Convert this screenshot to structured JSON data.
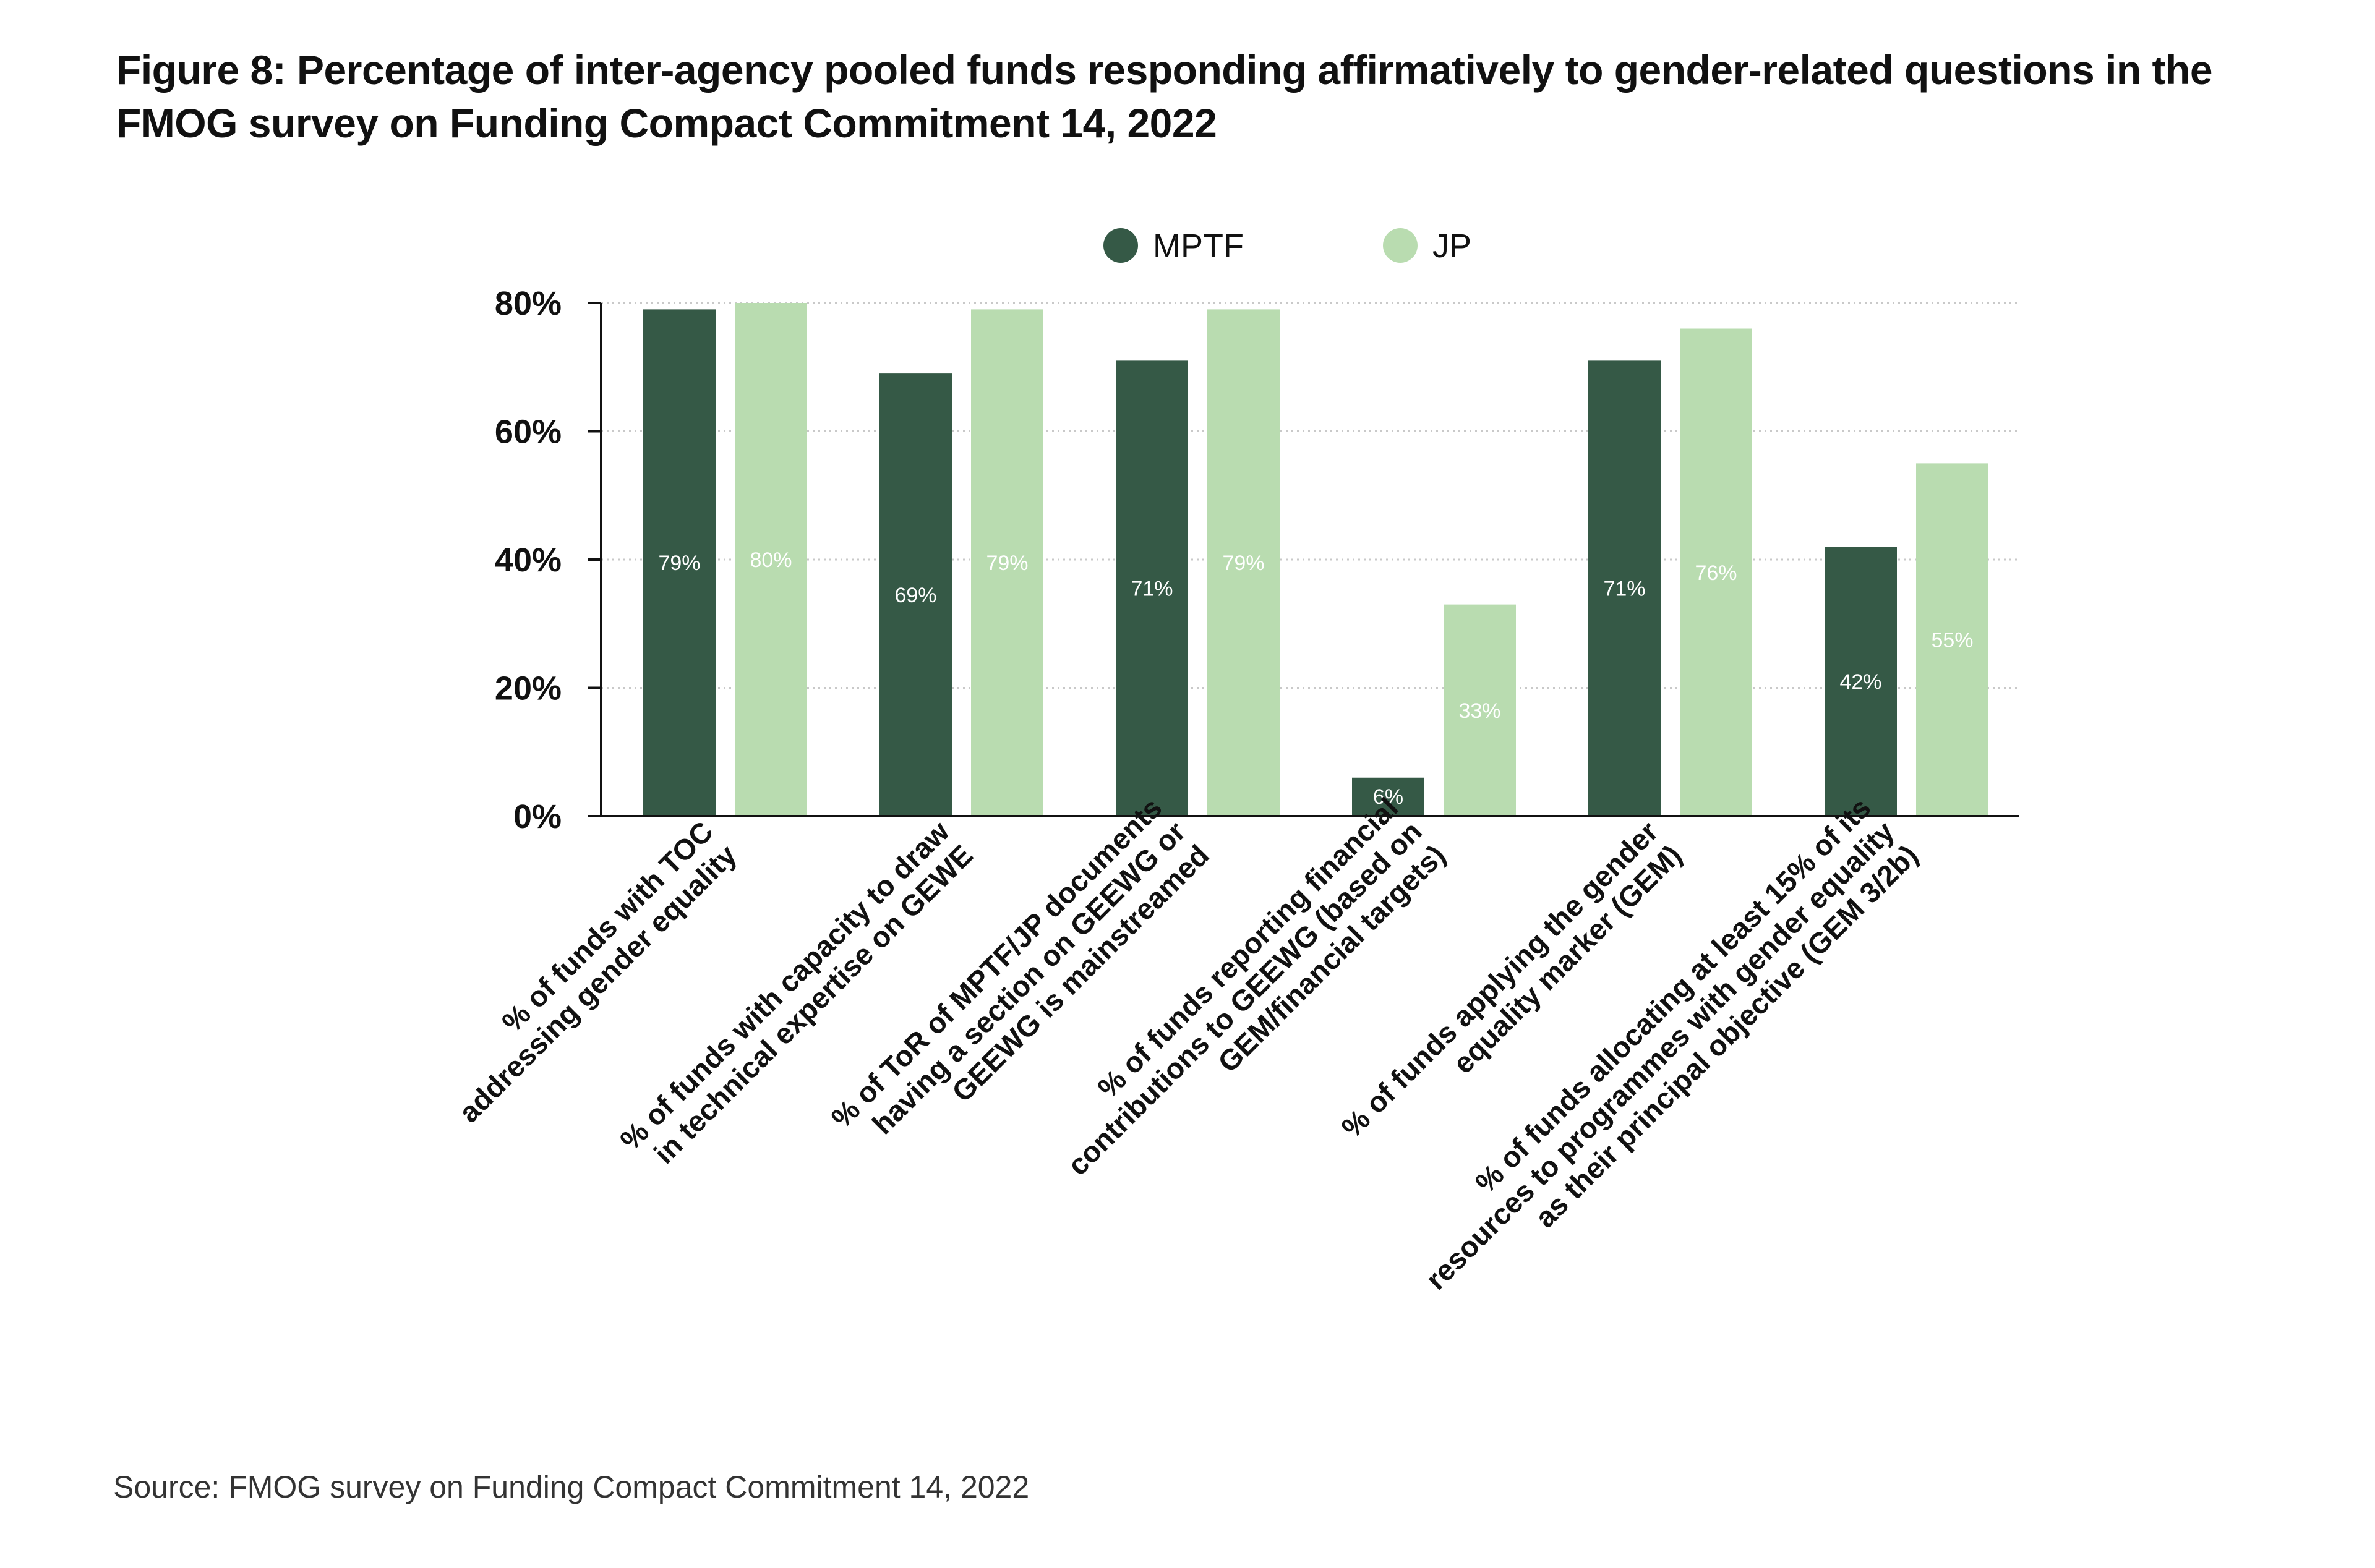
{
  "figure": {
    "title": "Figure 8: Percentage of inter-agency pooled funds responding affirmatively to gender-related questions in the FMOG survey on Funding Compact Commitment 14, 2022",
    "source": "Source: FMOG survey on Funding Compact Commitment 14, 2022"
  },
  "chart_data": {
    "type": "bar",
    "title": "Figure 8: Percentage of inter-agency pooled funds responding affirmatively to gender-related questions in the FMOG survey on Funding Compact Commitment 14, 2022",
    "xlabel": "",
    "ylabel": "",
    "ylim": [
      0,
      80
    ],
    "yticks": [
      0,
      20,
      40,
      60,
      80
    ],
    "ytick_labels": [
      "0%",
      "20%",
      "40%",
      "60%",
      "80%"
    ],
    "grid": true,
    "legend_position": "top-center",
    "categories": [
      [
        "% of funds with TOC",
        "addressing gender equality"
      ],
      [
        "% of funds with capacity to draw",
        "in technical expertise on GEWE"
      ],
      [
        "% of ToR of MPTF/JP documents",
        "having a section on GEEWG or",
        "GEEWG is mainstreamed"
      ],
      [
        "% of funds reporting financial",
        "contributions to GEEWG (based on",
        "GEM/financial targets)"
      ],
      [
        "% of funds applying the gender",
        "equality marker (GEM)"
      ],
      [
        "% of funds allocating at least 15% of its",
        "resources to programmes with gender equality",
        "as their principal objective (GEM 3/2b)"
      ]
    ],
    "series": [
      {
        "name": "MPTF",
        "color": "#355946",
        "values": [
          79,
          69,
          71,
          6,
          71,
          42
        ],
        "labels": [
          "79%",
          "69%",
          "71%",
          "6%",
          "71%",
          "42%"
        ]
      },
      {
        "name": "JP",
        "color": "#b9dcb0",
        "values": [
          80,
          79,
          79,
          33,
          76,
          55
        ],
        "labels": [
          "80%",
          "79%",
          "79%",
          "33%",
          "76%",
          "55%"
        ]
      }
    ]
  }
}
